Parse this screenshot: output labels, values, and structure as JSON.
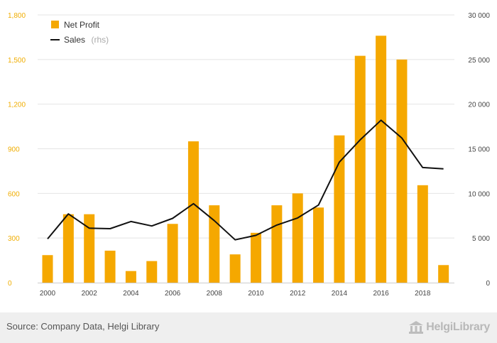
{
  "chart_data": {
    "type": "bar",
    "title": "",
    "xlabel": "",
    "ylabel": "",
    "x": [
      2000,
      2001,
      2002,
      2003,
      2004,
      2005,
      2006,
      2007,
      2008,
      2009,
      2010,
      2011,
      2012,
      2013,
      2014,
      2015,
      2016,
      2017,
      2018,
      2019
    ],
    "x_tick_labels": [
      "2000",
      "2002",
      "2004",
      "2006",
      "2008",
      "2010",
      "2012",
      "2014",
      "2016",
      "2018"
    ],
    "series": [
      {
        "name": "Net Profit",
        "type": "bar",
        "axis": "left",
        "color": "#f5a800",
        "values": [
          185,
          460,
          460,
          215,
          78,
          145,
          395,
          950,
          520,
          190,
          335,
          520,
          600,
          505,
          990,
          1525,
          1660,
          1500,
          655,
          118
        ]
      },
      {
        "name": "Sales",
        "name_suffix": "(rhs)",
        "type": "line",
        "axis": "right",
        "color": "#111111",
        "values": [
          4900,
          7700,
          6100,
          6050,
          6850,
          6350,
          7200,
          8850,
          6950,
          4800,
          5300,
          6450,
          7250,
          8700,
          13500,
          16000,
          18200,
          16200,
          12900,
          12750
        ]
      }
    ],
    "y_left": {
      "ylim": [
        0,
        1800
      ],
      "ticks": [
        0,
        300,
        600,
        900,
        1200,
        1500,
        1800
      ],
      "tick_labels": [
        "0",
        "300",
        "600",
        "900",
        "1,200",
        "1,500",
        "1,800"
      ]
    },
    "y_right": {
      "ylim": [
        0,
        30000
      ],
      "ticks": [
        0,
        5000,
        10000,
        15000,
        20000,
        25000,
        30000
      ],
      "tick_labels": [
        "0",
        "5 000",
        "10 000",
        "15 000",
        "20 000",
        "25 000",
        "30 000"
      ]
    },
    "grid": true,
    "legend": "top-left"
  },
  "footer": {
    "source": "Source: Company Data, Helgi Library",
    "logo": "HelgiLibrary"
  },
  "colors": {
    "left_axis": "#f0ad00",
    "grid": "#e4e4e4",
    "footer_bg": "#efefef"
  }
}
